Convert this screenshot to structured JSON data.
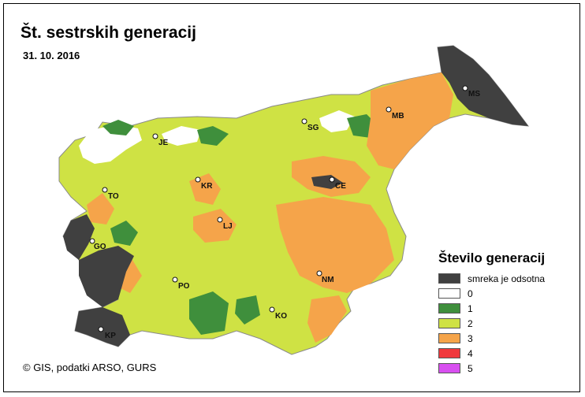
{
  "title": "Št. sestrskih generacij",
  "date": "31. 10. 2016",
  "colors": {
    "absent": "#404040",
    "zero": "#ffffff",
    "one": "#3f8f3c",
    "two": "#cfe244",
    "three": "#f5a44a",
    "four": "#f0383c",
    "five": "#d84ff0",
    "border": "#8a8a8a"
  },
  "legend": {
    "title": "Število generacij",
    "items": [
      {
        "label": "smreka je odsotna",
        "color": "#404040"
      },
      {
        "label": "0",
        "color": "#ffffff"
      },
      {
        "label": "1",
        "color": "#3f8f3c"
      },
      {
        "label": "2",
        "color": "#cfe244"
      },
      {
        "label": "3",
        "color": "#f5a44a"
      },
      {
        "label": "4",
        "color": "#f0383c"
      },
      {
        "label": "5",
        "color": "#d84ff0"
      }
    ]
  },
  "cities": {
    "ms": "MS",
    "mb": "MB",
    "sg": "SG",
    "je": "JE",
    "ce": "CE",
    "kr": "KR",
    "to": "TO",
    "lj": "LJ",
    "go": "GO",
    "nm": "NM",
    "po": "PO",
    "ko": "KO",
    "kp": "KP"
  },
  "credit": "© GIS, podatki ARSO, GURS"
}
